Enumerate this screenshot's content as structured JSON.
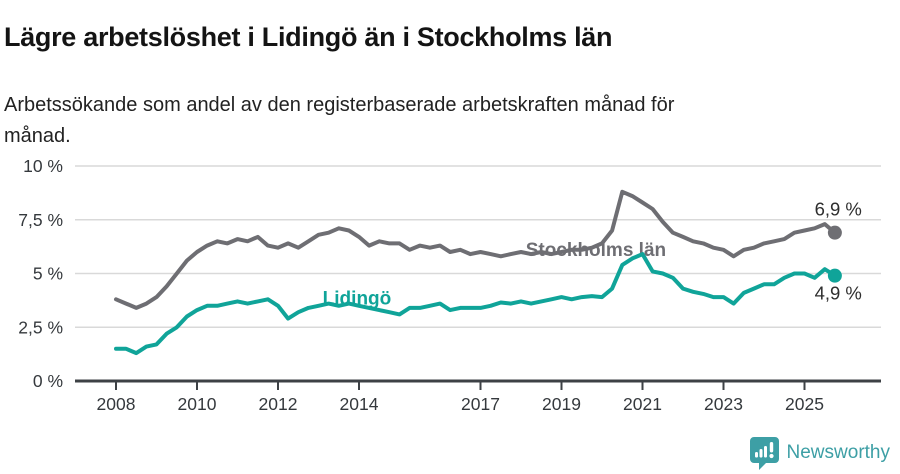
{
  "header": {
    "title": "Lägre arbetslöshet i Lidingö än i Stockholms län",
    "subtitle_lines": [
      "Arbetssökande som andel av den registerbaserade arbetskraften månad för",
      "månad."
    ]
  },
  "footer": {
    "brand": "Newsworthy",
    "brand_color": "#3d9fa5",
    "logo_icon": "speech-bubble-with-bar-chart-and-exclamation"
  },
  "chart_data": {
    "type": "line",
    "title": "Lägre arbetslöshet i Lidingö än i Stockholms län",
    "subtitle": "Arbetssökande som andel av den registerbaserade arbetskraften månad för månad.",
    "ylim": [
      0,
      10
    ],
    "xlim": [
      2007,
      2026.9
    ],
    "grid": "horizontal",
    "legend_position": "inline-labels",
    "y_ticks": [
      {
        "value": 0,
        "label": "0 %"
      },
      {
        "value": 2.5,
        "label": "2,5 %"
      },
      {
        "value": 5,
        "label": "5 %"
      },
      {
        "value": 7.5,
        "label": "7,5 %"
      },
      {
        "value": 10,
        "label": "10 %"
      }
    ],
    "x_ticks": [
      2008,
      2010,
      2012,
      2014,
      2017,
      2019,
      2021,
      2023,
      2025
    ],
    "axis_color": "#3d4145",
    "gridline_color": "#d9d9d9",
    "tick_label_color": "#35393d",
    "value_label_color": "#2e2e2e",
    "x": [
      2008,
      2008.25,
      2008.5,
      2008.75,
      2009,
      2009.25,
      2009.5,
      2009.75,
      2010,
      2010.25,
      2010.5,
      2010.75,
      2011,
      2011.25,
      2011.5,
      2011.75,
      2012,
      2012.25,
      2012.5,
      2012.75,
      2013,
      2013.25,
      2013.5,
      2013.75,
      2014,
      2014.25,
      2014.5,
      2014.75,
      2015,
      2015.25,
      2015.5,
      2015.75,
      2016,
      2016.25,
      2016.5,
      2016.75,
      2017,
      2017.25,
      2017.5,
      2017.75,
      2018,
      2018.25,
      2018.5,
      2018.75,
      2019,
      2019.25,
      2019.5,
      2019.75,
      2020,
      2020.25,
      2020.5,
      2020.75,
      2021,
      2021.25,
      2021.5,
      2021.75,
      2022,
      2022.25,
      2022.5,
      2022.75,
      2023,
      2023.25,
      2023.5,
      2023.75,
      2024,
      2024.25,
      2024.5,
      2024.75,
      2025,
      2025.25,
      2025.5,
      2025.75
    ],
    "series": [
      {
        "name": "Stockholms län",
        "color": "#6e6e73",
        "end_label": "6,9 %",
        "end_label_position": "above",
        "label_x": 2019.85,
        "label_y": 6.15,
        "values": [
          3.8,
          3.6,
          3.4,
          3.6,
          3.9,
          4.4,
          5.0,
          5.6,
          6.0,
          6.3,
          6.5,
          6.4,
          6.6,
          6.5,
          6.7,
          6.3,
          6.2,
          6.4,
          6.2,
          6.5,
          6.8,
          6.9,
          7.1,
          7.0,
          6.7,
          6.3,
          6.5,
          6.4,
          6.4,
          6.1,
          6.3,
          6.2,
          6.3,
          6.0,
          6.1,
          5.9,
          6.0,
          5.9,
          5.8,
          5.9,
          6.0,
          5.9,
          6.0,
          5.9,
          6.0,
          6.1,
          6.1,
          6.2,
          6.4,
          7.0,
          8.8,
          8.6,
          8.3,
          8.0,
          7.4,
          6.9,
          6.7,
          6.5,
          6.4,
          6.2,
          6.1,
          5.8,
          6.1,
          6.2,
          6.4,
          6.5,
          6.6,
          6.9,
          7.0,
          7.1,
          7.3,
          6.9
        ]
      },
      {
        "name": "Lidingö",
        "color": "#10a499",
        "end_label": "4,9 %",
        "end_label_position": "below",
        "label_x": 2013.95,
        "label_y": 3.88,
        "values": [
          1.5,
          1.5,
          1.3,
          1.6,
          1.7,
          2.2,
          2.5,
          3.0,
          3.3,
          3.5,
          3.5,
          3.6,
          3.7,
          3.6,
          3.7,
          3.8,
          3.5,
          2.9,
          3.2,
          3.4,
          3.5,
          3.6,
          3.5,
          3.6,
          3.5,
          3.4,
          3.3,
          3.2,
          3.1,
          3.4,
          3.4,
          3.5,
          3.6,
          3.3,
          3.4,
          3.4,
          3.4,
          3.5,
          3.65,
          3.6,
          3.7,
          3.6,
          3.7,
          3.8,
          3.9,
          3.8,
          3.9,
          3.95,
          3.9,
          4.3,
          5.4,
          5.7,
          5.9,
          5.1,
          5.0,
          4.8,
          4.3,
          4.15,
          4.05,
          3.9,
          3.9,
          3.6,
          4.1,
          4.3,
          4.5,
          4.5,
          4.8,
          5.0,
          5.0,
          4.8,
          5.2,
          4.9
        ]
      }
    ]
  }
}
